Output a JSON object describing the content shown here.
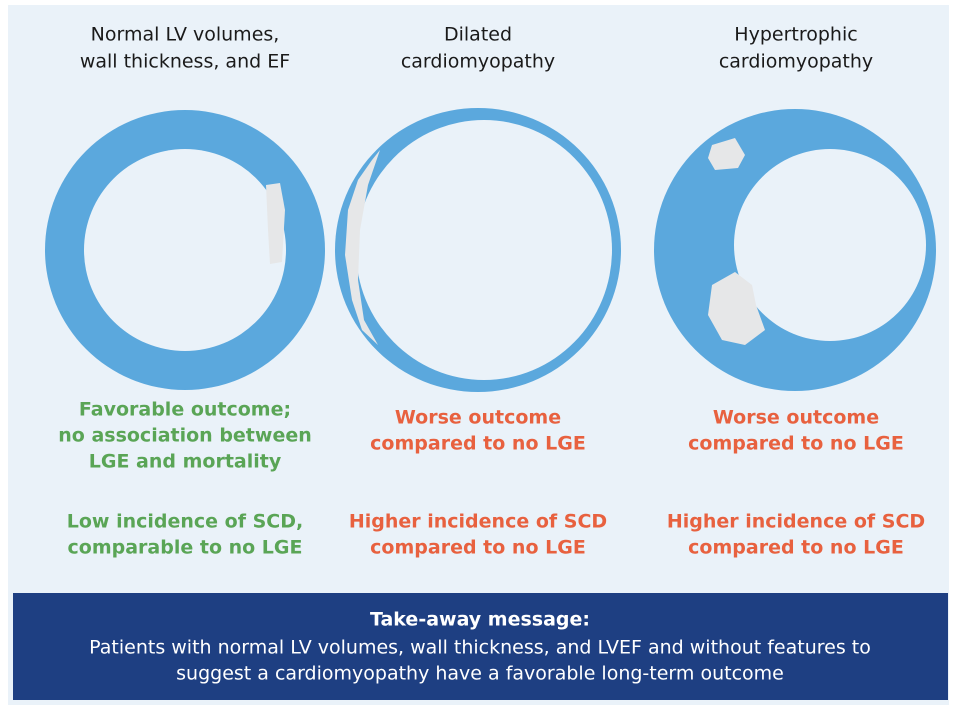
{
  "columns": [
    {
      "title": [
        "Normal LV volumes,",
        "wall thickness, and EF"
      ],
      "outcome": [
        "Favorable outcome;",
        "no association between",
        "LGE and mortality"
      ],
      "scd": [
        "Low incidence of SCD,",
        "comparable to no LGE"
      ]
    },
    {
      "title": [
        "Dilated",
        "cardiomyopathy"
      ],
      "outcome": [
        "Worse outcome",
        "compared to no LGE"
      ],
      "scd": [
        "Higher incidence of SCD",
        "compared to no LGE"
      ]
    },
    {
      "title": [
        "Hypertrophic",
        "cardiomyopathy"
      ],
      "outcome": [
        "Worse outcome",
        "compared to no LGE"
      ],
      "scd": [
        "Higher incidence of SCD",
        "compared to no LGE"
      ]
    }
  ],
  "takeaway": {
    "heading": "Take-away message:",
    "lines": [
      "Patients with normal LV volumes, wall thickness, and LVEF and  without features to",
      "suggest a cardiomyopathy have a favorable long-term outcome"
    ]
  }
}
